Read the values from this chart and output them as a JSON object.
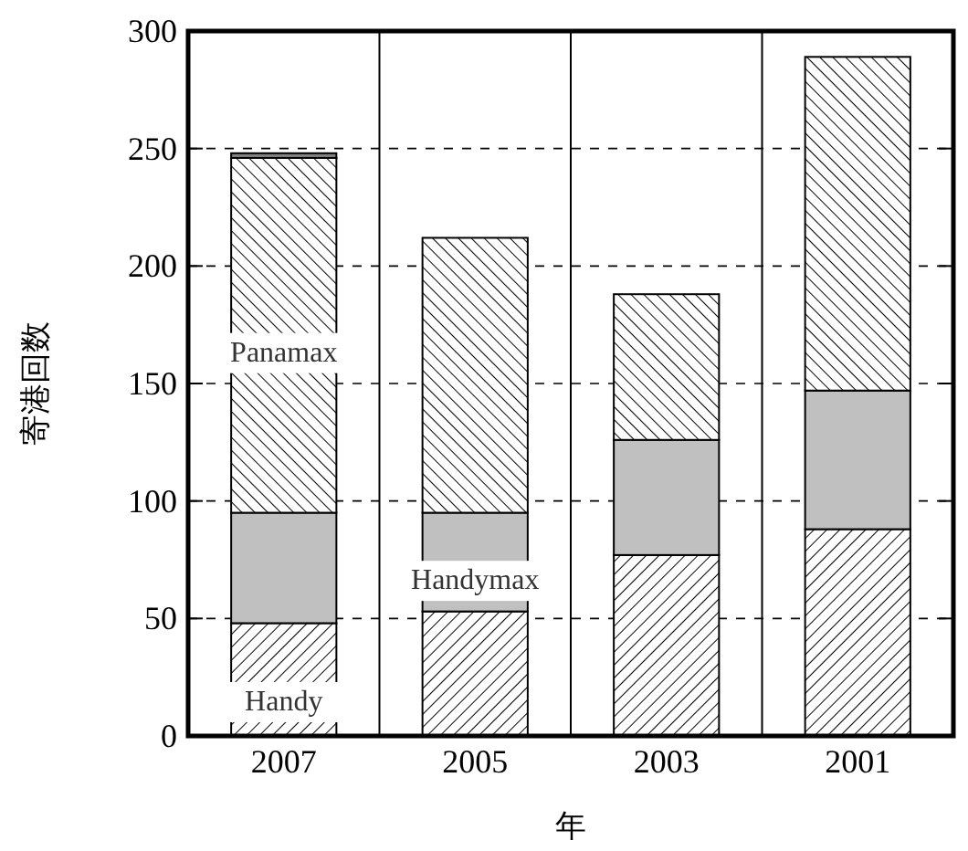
{
  "chart_data": {
    "type": "bar",
    "stacked": true,
    "xlabel": "年",
    "ylabel": "寄港回数",
    "categories": [
      "2007",
      "2005",
      "2003",
      "2001"
    ],
    "series": [
      {
        "name": "Handy",
        "color": "#000000",
        "values": [
          48,
          53,
          77,
          88
        ]
      },
      {
        "name": "Handymax",
        "color": "#c0c0c0",
        "values": [
          47,
          42,
          49,
          59
        ]
      },
      {
        "name": "Panamax",
        "color": "#000000",
        "values": [
          151,
          117,
          62,
          142
        ]
      },
      {
        "color": "#808080",
        "values": [
          2,
          null,
          null,
          null
        ]
      }
    ],
    "ylim": [
      0,
      300
    ],
    "yticks": [
      0,
      50,
      100,
      150,
      200,
      250,
      300
    ],
    "grid": "y"
  }
}
